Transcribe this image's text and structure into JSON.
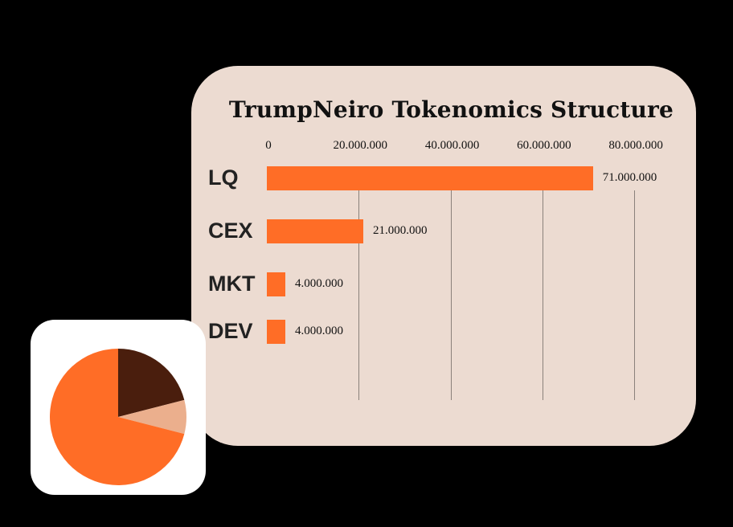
{
  "chart_data": [
    {
      "type": "bar",
      "orientation": "horizontal",
      "title": "TrumpNeiro Tokenomics Structure",
      "categories": [
        "LQ",
        "CEX",
        "MKT",
        "DEV"
      ],
      "values": [
        71000000,
        21000000,
        4000000,
        4000000
      ],
      "value_labels": [
        "71.000.000",
        "21.000.000",
        "4.000.000",
        "4.000.000"
      ],
      "xlim": [
        0,
        80000000
      ],
      "xticks": [
        0,
        20000000,
        40000000,
        60000000,
        80000000
      ],
      "xtick_labels": [
        "0",
        "20.000.000",
        "40.000.000",
        "60.000.000",
        "80.000.000"
      ],
      "axis_position": "top",
      "grid": true,
      "bar_color": "#ff6d26"
    },
    {
      "type": "pie",
      "categories": [
        "LQ",
        "CEX",
        "MKT",
        "DEV"
      ],
      "values": [
        71000000,
        21000000,
        4000000,
        4000000
      ],
      "colors": [
        "#ff6d26",
        "#4a1e0d",
        "#ebaf8d",
        "#ebaf8d"
      ]
    }
  ],
  "colors": {
    "background": "#000000",
    "card": "#ecdbd1",
    "accent": "#ff6d26"
  }
}
